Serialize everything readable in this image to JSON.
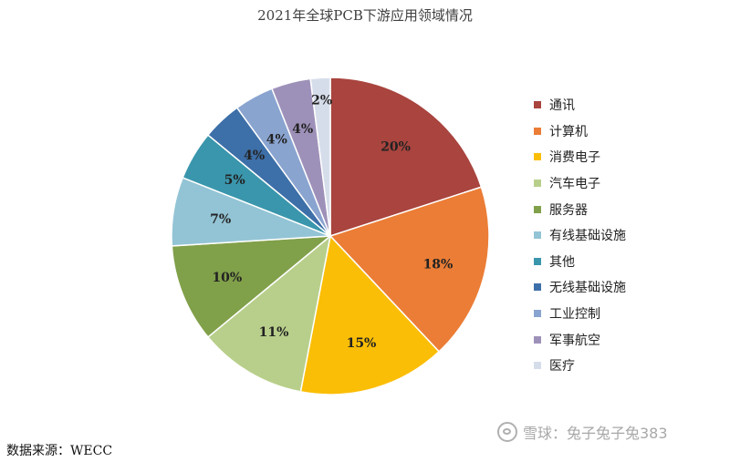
{
  "chart_data": {
    "type": "pie",
    "title": "2021年全球PCB下游应用领域情况",
    "categories": [
      "通讯",
      "计算机",
      "消费电子",
      "汽车电子",
      "服务器",
      "有线基础设施",
      "其他",
      "无线基础设施",
      "工业控制",
      "军事航空",
      "医疗"
    ],
    "values": [
      20,
      18,
      15,
      11,
      10,
      7,
      5,
      4,
      4,
      4,
      2
    ],
    "labels": [
      "20%",
      "18%",
      "15%",
      "11%",
      "10%",
      "7%",
      "5%",
      "4%",
      "4%",
      "4%",
      "2%"
    ],
    "colors": [
      "#A9443E",
      "#EB7D36",
      "#FBBE06",
      "#B8CF8B",
      "#81A04A",
      "#93C4D5",
      "#3A96AC",
      "#3D6FA8",
      "#8AA4D0",
      "#9E91B9",
      "#D6DDEA"
    ],
    "legend_position": "right",
    "start_angle_deg": 0,
    "direction": "clockwise"
  },
  "source_note": "数据来源：WECC",
  "watermark": "雪球：兔子兔子兔383"
}
